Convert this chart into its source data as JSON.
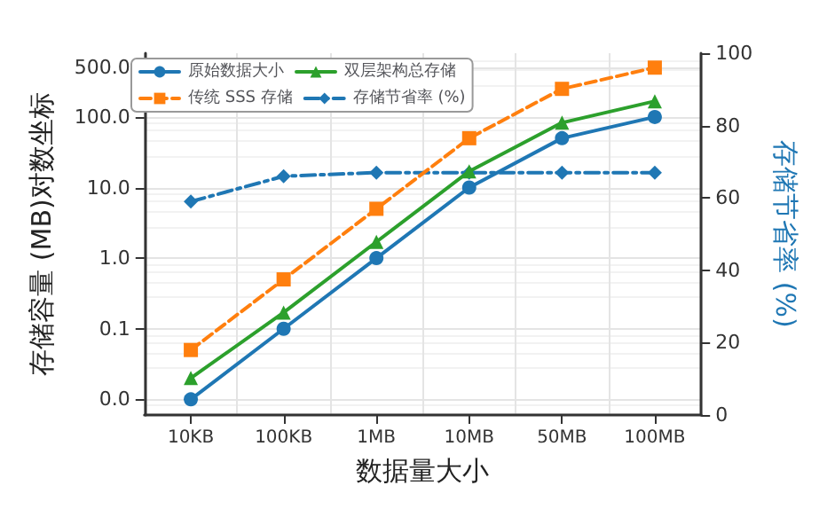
{
  "chart_data": {
    "type": "line",
    "xlabel": "数据量大小",
    "ylabel": "存储容量 (MB)对数坐标",
    "y2label": "存储节省率 (%)",
    "categories": [
      "10KB",
      "100KB",
      "1MB",
      "10MB",
      "50MB",
      "100MB"
    ],
    "series": [
      {
        "name": "原始数据大小",
        "color": "#1f77b4",
        "marker": "circle",
        "line_style": "solid",
        "values": [
          0.01,
          0.1,
          1,
          10,
          50,
          100
        ]
      },
      {
        "name": "传统 SSS 存储",
        "color": "#ff7f0e",
        "marker": "square",
        "line_style": "dashed",
        "values": [
          0.05,
          0.5,
          5,
          50,
          250,
          500
        ]
      },
      {
        "name": "双层架构总存储",
        "color": "#2ca02c",
        "marker": "triangle",
        "line_style": "solid",
        "values": [
          0.02,
          0.17,
          1.7,
          17,
          83,
          167
        ]
      },
      {
        "name": "存储节省率 (%)",
        "color": "#1f77b4",
        "marker": "diamond",
        "line_style": "dashdot",
        "axis": "y2",
        "values": [
          59,
          66,
          67,
          67,
          67,
          67
        ]
      }
    ],
    "log": "y",
    "ylim": [
      0.006,
      800
    ],
    "yticks": [
      {
        "value": 0.01,
        "label": "0.0"
      },
      0.1,
      {
        "value": 1,
        "label": "1.0"
      },
      {
        "value": 10,
        "label": "10.0"
      },
      {
        "value": 100,
        "label": "100.0"
      },
      {
        "value": 500,
        "label": "500.0"
      }
    ],
    "y2lim": [
      0,
      100
    ],
    "y2ticks": [
      0,
      20,
      40,
      60,
      80,
      100
    ],
    "grid": true,
    "legend": "top left"
  }
}
